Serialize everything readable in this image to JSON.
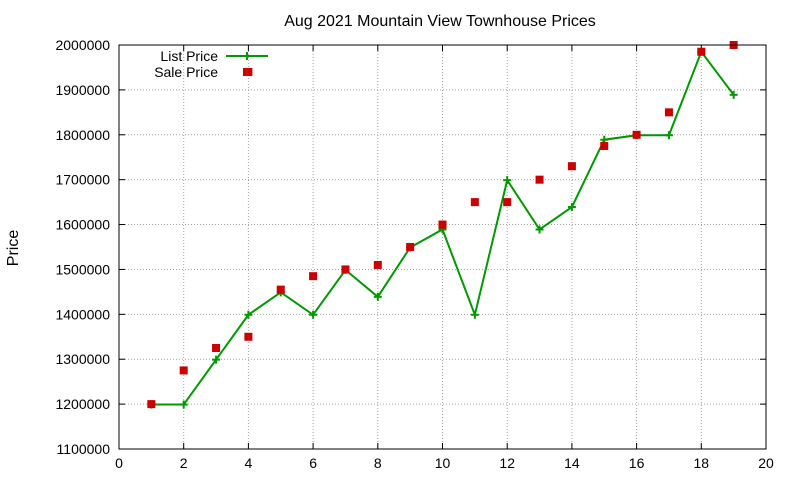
{
  "chart_data": {
    "type": "line",
    "title": "Aug 2021 Mountain View Townhouse Prices",
    "xlabel": "",
    "ylabel": "Price",
    "xlim": [
      0,
      20
    ],
    "ylim": [
      1100000,
      2000000
    ],
    "x_ticks": [
      0,
      2,
      4,
      6,
      8,
      10,
      12,
      14,
      16,
      18,
      20
    ],
    "y_ticks": [
      1100000,
      1200000,
      1300000,
      1400000,
      1500000,
      1600000,
      1700000,
      1800000,
      1900000,
      2000000
    ],
    "grid": true,
    "legend_position": "top-left",
    "series": [
      {
        "name": "List Price",
        "style": "line-plus",
        "color": "#009900",
        "x": [
          1,
          2,
          3,
          4,
          5,
          6,
          7,
          8,
          9,
          10,
          11,
          12,
          13,
          14,
          15,
          16,
          17,
          18,
          19
        ],
        "y": [
          1199000,
          1199000,
          1299000,
          1399000,
          1449000,
          1399000,
          1499000,
          1439000,
          1549000,
          1589000,
          1399000,
          1699000,
          1589000,
          1639000,
          1789000,
          1799000,
          1799000,
          1985000,
          1889000
        ]
      },
      {
        "name": "Sale Price",
        "style": "square-points",
        "color": "#cc0000",
        "x": [
          1,
          2,
          3,
          4,
          4,
          5,
          6,
          7,
          8,
          9,
          10,
          11,
          12,
          13,
          14,
          15,
          16,
          17,
          18,
          19
        ],
        "y": [
          1200000,
          1275000,
          1325000,
          1940000,
          1350000,
          1455000,
          1485000,
          1500000,
          1510000,
          1550000,
          1600000,
          1650000,
          1650000,
          1700000,
          1730000,
          1775000,
          1800000,
          1850000,
          1985000,
          2000000
        ]
      }
    ]
  }
}
